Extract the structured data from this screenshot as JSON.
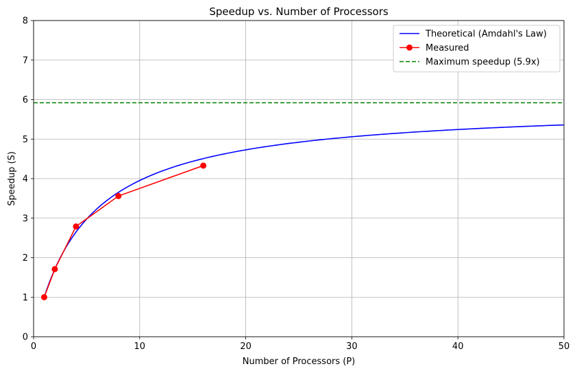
{
  "chart_data": {
    "type": "line",
    "title": "Speedup vs. Number of Processors",
    "xlabel": "Number of Processors (P)",
    "ylabel": "Speedup (S)",
    "xlim": [
      0,
      50
    ],
    "ylim": [
      0,
      8
    ],
    "xticks": [
      0,
      10,
      20,
      30,
      40,
      50
    ],
    "yticks": [
      0,
      1,
      2,
      3,
      4,
      5,
      6,
      7,
      8
    ],
    "grid": true,
    "legend_position": "top-right",
    "series": [
      {
        "name": "Theoretical (Amdahl's Law)",
        "style": "solid",
        "color": "#0000ff",
        "model": "amdahl",
        "serial_fraction": 0.17,
        "x_range": [
          1,
          50
        ]
      },
      {
        "name": "Measured",
        "style": "solid-markers",
        "color": "#ff0000",
        "x": [
          1,
          2,
          4,
          8,
          16
        ],
        "y": [
          1.0,
          1.71,
          2.79,
          3.56,
          4.33
        ]
      },
      {
        "name": "Maximum speedup (5.9x)",
        "style": "dashed",
        "color": "#008000",
        "y_constant": 5.92
      }
    ]
  }
}
